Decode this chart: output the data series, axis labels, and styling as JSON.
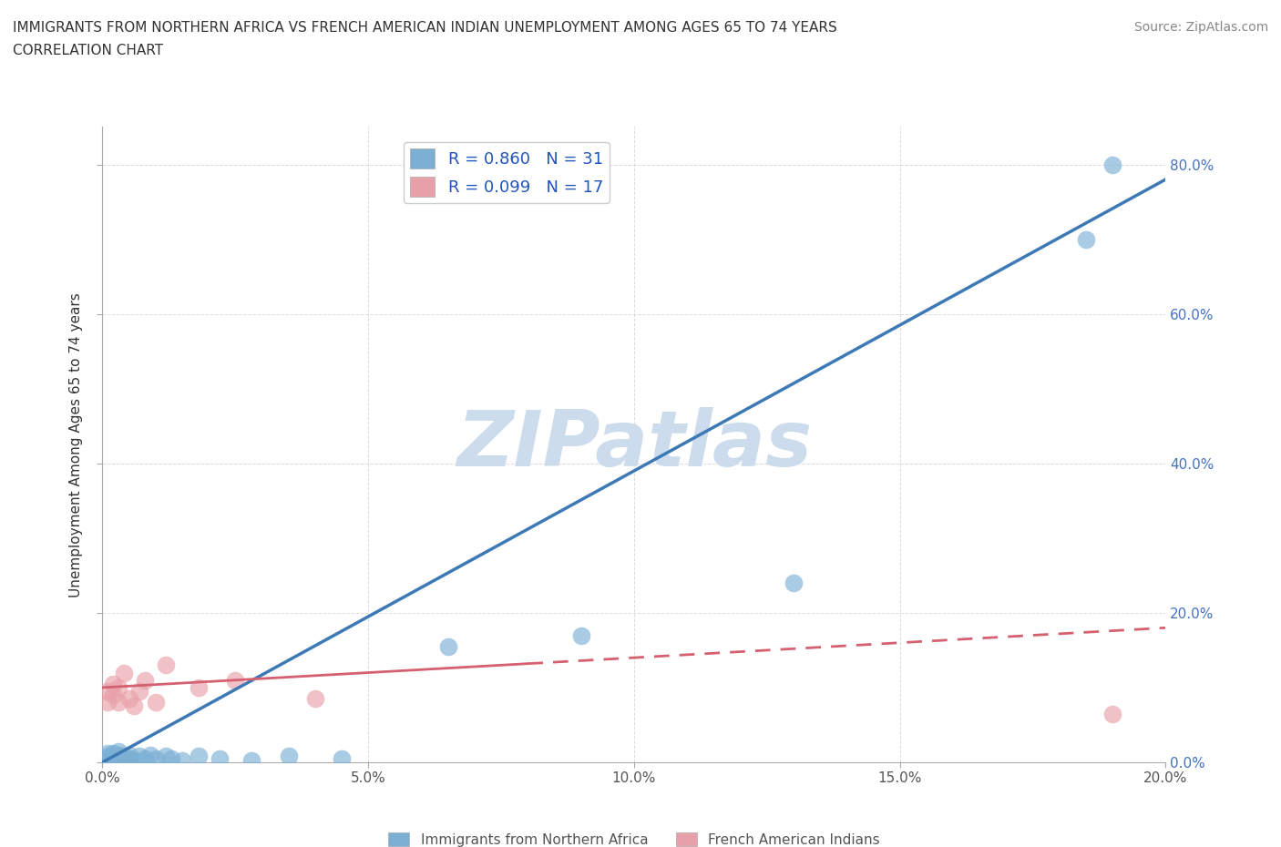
{
  "title_line1": "IMMIGRANTS FROM NORTHERN AFRICA VS FRENCH AMERICAN INDIAN UNEMPLOYMENT AMONG AGES 65 TO 74 YEARS",
  "title_line2": "CORRELATION CHART",
  "source_text": "Source: ZipAtlas.com",
  "ylabel": "Unemployment Among Ages 65 to 74 years",
  "xlim": [
    0.0,
    0.2
  ],
  "ylim": [
    0.0,
    0.85
  ],
  "xticks": [
    0.0,
    0.05,
    0.1,
    0.15,
    0.2
  ],
  "yticks": [
    0.0,
    0.2,
    0.4,
    0.6,
    0.8
  ],
  "xtick_labels": [
    "0.0%",
    "5.0%",
    "10.0%",
    "15.0%",
    "20.0%"
  ],
  "ytick_labels": [
    "0.0%",
    "20.0%",
    "40.0%",
    "60.0%",
    "80.0%"
  ],
  "blue_scatter_x": [
    0.001,
    0.001,
    0.001,
    0.002,
    0.002,
    0.002,
    0.003,
    0.003,
    0.003,
    0.004,
    0.004,
    0.005,
    0.005,
    0.006,
    0.007,
    0.008,
    0.009,
    0.01,
    0.012,
    0.013,
    0.015,
    0.018,
    0.022,
    0.028,
    0.035,
    0.045,
    0.065,
    0.09,
    0.13,
    0.185,
    0.19
  ],
  "blue_scatter_y": [
    0.005,
    0.008,
    0.012,
    0.003,
    0.007,
    0.012,
    0.005,
    0.01,
    0.015,
    0.003,
    0.008,
    0.005,
    0.01,
    0.003,
    0.008,
    0.005,
    0.01,
    0.005,
    0.008,
    0.005,
    0.003,
    0.008,
    0.005,
    0.003,
    0.008,
    0.005,
    0.155,
    0.17,
    0.24,
    0.7,
    0.8
  ],
  "pink_scatter_x": [
    0.001,
    0.001,
    0.002,
    0.002,
    0.003,
    0.003,
    0.004,
    0.005,
    0.006,
    0.007,
    0.008,
    0.01,
    0.012,
    0.018,
    0.025,
    0.04,
    0.19
  ],
  "pink_scatter_y": [
    0.08,
    0.095,
    0.09,
    0.105,
    0.08,
    0.1,
    0.12,
    0.085,
    0.075,
    0.095,
    0.11,
    0.08,
    0.13,
    0.1,
    0.11,
    0.085,
    0.065
  ],
  "blue_color": "#7bafd4",
  "pink_color": "#e8a0a8",
  "blue_line_color": "#3d7ab5",
  "pink_line_color": "#d46070",
  "pink_line_solid_end": 0.08,
  "R_blue": 0.86,
  "N_blue": 31,
  "R_pink": 0.099,
  "N_pink": 17,
  "watermark": "ZIPatlas",
  "watermark_color": "#ccdcec",
  "legend_label_blue": "Immigrants from Northern Africa",
  "legend_label_pink": "French American Indians",
  "background_color": "#ffffff",
  "grid_color": "#cccccc",
  "blue_trend_x0": 0.0,
  "blue_trend_y0": 0.0,
  "blue_trend_x1": 0.2,
  "blue_trend_y1": 0.78,
  "pink_trend_x0": 0.0,
  "pink_trend_y0": 0.1,
  "pink_trend_x1": 0.2,
  "pink_trend_y1": 0.18
}
